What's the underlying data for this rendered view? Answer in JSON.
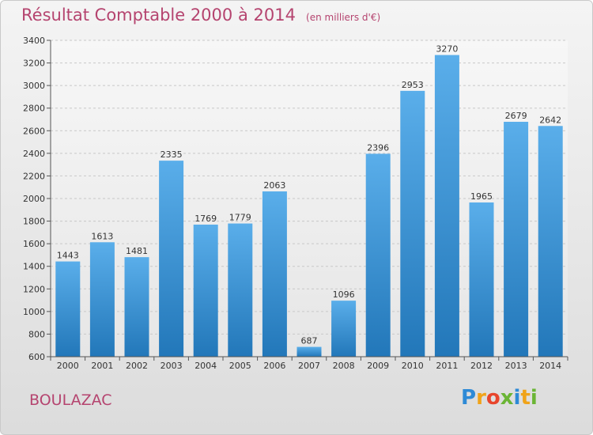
{
  "header": {
    "title": "Résultat Comptable 2000 à 2014",
    "subtitle": "(en milliers d'€)"
  },
  "footer": {
    "commune": "BOULAZAC",
    "brand_letters": [
      "P",
      "r",
      "o",
      "x",
      "i",
      "t",
      "i"
    ],
    "brand_colors": [
      "#2e8ad6",
      "#f0a319",
      "#e8452c",
      "#6bb535",
      "#2e8ad6",
      "#f0a319",
      "#6bb535"
    ]
  },
  "colors": {
    "bar_light": "#5aaeea",
    "bar_dark": "#2277b9",
    "title": "#b5446f"
  },
  "chart_data": {
    "type": "bar",
    "categories": [
      "2000",
      "2001",
      "2002",
      "2003",
      "2004",
      "2005",
      "2006",
      "2007",
      "2008",
      "2009",
      "2010",
      "2011",
      "2012",
      "2013",
      "2014"
    ],
    "values": [
      1443,
      1613,
      1481,
      2335,
      1769,
      1779,
      2063,
      687,
      1096,
      2396,
      2953,
      3270,
      1965,
      2679,
      2642
    ],
    "ylim": [
      600,
      3400
    ],
    "yticks": [
      600,
      800,
      1000,
      1200,
      1400,
      1600,
      1800,
      2000,
      2200,
      2400,
      2600,
      2800,
      3000,
      3200,
      3400
    ],
    "grid": true,
    "data_labels": true
  }
}
